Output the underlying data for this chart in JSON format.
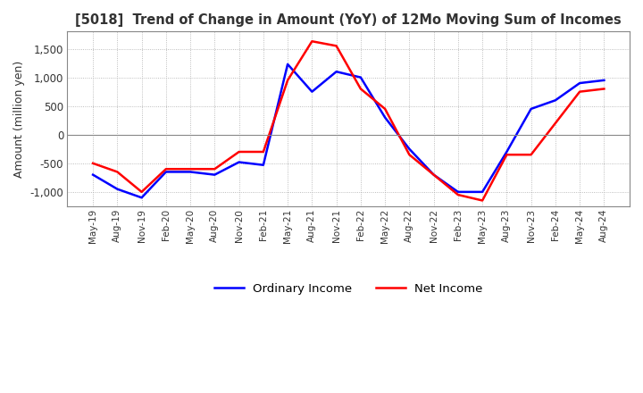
{
  "title": "[5018]  Trend of Change in Amount (YoY) of 12Mo Moving Sum of Incomes",
  "ylabel": "Amount (million yen)",
  "ylim": [
    -1250,
    1800
  ],
  "yticks": [
    -1000,
    -500,
    0,
    500,
    1000,
    1500
  ],
  "line_ordinary_color": "#0000FF",
  "line_net_color": "#FF0000",
  "legend_ordinary": "Ordinary Income",
  "legend_net": "Net Income",
  "background_color": "#FFFFFF",
  "grid_color": "#AAAAAA",
  "x_labels": [
    "May-19",
    "Aug-19",
    "Nov-19",
    "Feb-20",
    "May-20",
    "Aug-20",
    "Nov-20",
    "Feb-21",
    "May-21",
    "Aug-21",
    "Nov-21",
    "Feb-22",
    "May-22",
    "Aug-22",
    "Nov-22",
    "Feb-23",
    "May-23",
    "Aug-23",
    "Nov-23",
    "Feb-24",
    "May-24",
    "Aug-24"
  ],
  "ordinary_income": [
    -700,
    -950,
    -1100,
    -650,
    -650,
    -700,
    -480,
    -530,
    1230,
    750,
    1100,
    1000,
    300,
    -250,
    -700,
    -1000,
    -1000,
    -300,
    450,
    600,
    900,
    950
  ],
  "net_income": [
    -500,
    -650,
    -1000,
    -600,
    -600,
    -600,
    -300,
    -300,
    950,
    1630,
    1550,
    800,
    450,
    -350,
    -700,
    -1050,
    -1150,
    -350,
    -350,
    200,
    750,
    800
  ]
}
